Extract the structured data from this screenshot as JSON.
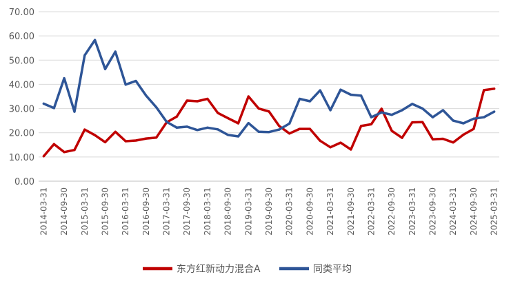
{
  "chart_data": {
    "type": "line",
    "title": "",
    "xlabel": "",
    "ylabel": "",
    "ylim": [
      0,
      70
    ],
    "y_ticks": [
      "0.00",
      "10.00",
      "20.00",
      "30.00",
      "40.00",
      "50.00",
      "60.00",
      "70.00"
    ],
    "grid": "horizontal",
    "legend_position": "bottom",
    "x_tick_labels": [
      "2014-03-31",
      "2014-09-30",
      "2015-03-31",
      "2015-09-30",
      "2016-03-31",
      "2016-09-30",
      "2017-03-31",
      "2017-09-30",
      "2018-03-31",
      "2018-09-30",
      "2019-03-31",
      "2019-09-30",
      "2020-03-31",
      "2020-09-30",
      "2021-03-31",
      "2021-09-30",
      "2022-03-31",
      "2022-09-30",
      "2023-03-31",
      "2023-09-30",
      "2024-03-31",
      "2024-09-30",
      "2025-03-31"
    ],
    "x": [
      "2014-03-31",
      "2014-06-30",
      "2014-09-30",
      "2014-12-31",
      "2015-03-31",
      "2015-06-30",
      "2015-09-30",
      "2015-12-31",
      "2016-03-31",
      "2016-06-30",
      "2016-09-30",
      "2016-12-31",
      "2017-03-31",
      "2017-06-30",
      "2017-09-30",
      "2017-12-31",
      "2018-03-31",
      "2018-06-30",
      "2018-09-30",
      "2018-12-31",
      "2019-03-31",
      "2019-06-30",
      "2019-09-30",
      "2019-12-31",
      "2020-03-31",
      "2020-06-30",
      "2020-09-30",
      "2020-12-31",
      "2021-03-31",
      "2021-06-30",
      "2021-09-30",
      "2021-12-31",
      "2022-03-31",
      "2022-06-30",
      "2022-09-30",
      "2022-12-31",
      "2023-03-31",
      "2023-06-30",
      "2023-09-30",
      "2023-12-31",
      "2024-03-31",
      "2024-06-30",
      "2024-09-30",
      "2024-12-31",
      "2025-03-31"
    ],
    "series": [
      {
        "name": "东方红新动力混合A",
        "color": "#C00000",
        "values": [
          10.3,
          15.3,
          12.0,
          12.9,
          21.3,
          19.0,
          16.1,
          20.4,
          16.5,
          16.8,
          17.6,
          18.0,
          24.3,
          26.7,
          33.3,
          33.0,
          34.0,
          28.2,
          26.0,
          23.9,
          35.0,
          30.0,
          28.8,
          22.8,
          19.7,
          21.6,
          21.6,
          16.7,
          14.0,
          15.9,
          13.1,
          22.8,
          23.5,
          29.9,
          20.8,
          17.9,
          24.3,
          24.4,
          17.3,
          17.5,
          16.0,
          19.2,
          21.6,
          37.6,
          38.2
        ]
      },
      {
        "name": "同类平均",
        "color": "#2E5597",
        "values": [
          32.0,
          30.2,
          42.5,
          28.7,
          52.0,
          58.3,
          46.3,
          53.5,
          39.9,
          41.4,
          35.3,
          30.5,
          24.5,
          22.1,
          22.5,
          21.1,
          22.1,
          21.4,
          19.1,
          18.5,
          24.0,
          20.4,
          20.3,
          21.3,
          23.8,
          34.0,
          33.0,
          37.5,
          29.3,
          37.8,
          35.7,
          35.3,
          26.4,
          28.4,
          27.4,
          29.3,
          31.9,
          30.0,
          26.4,
          29.3,
          25.0,
          23.9,
          25.8,
          26.4,
          28.7
        ]
      }
    ]
  }
}
